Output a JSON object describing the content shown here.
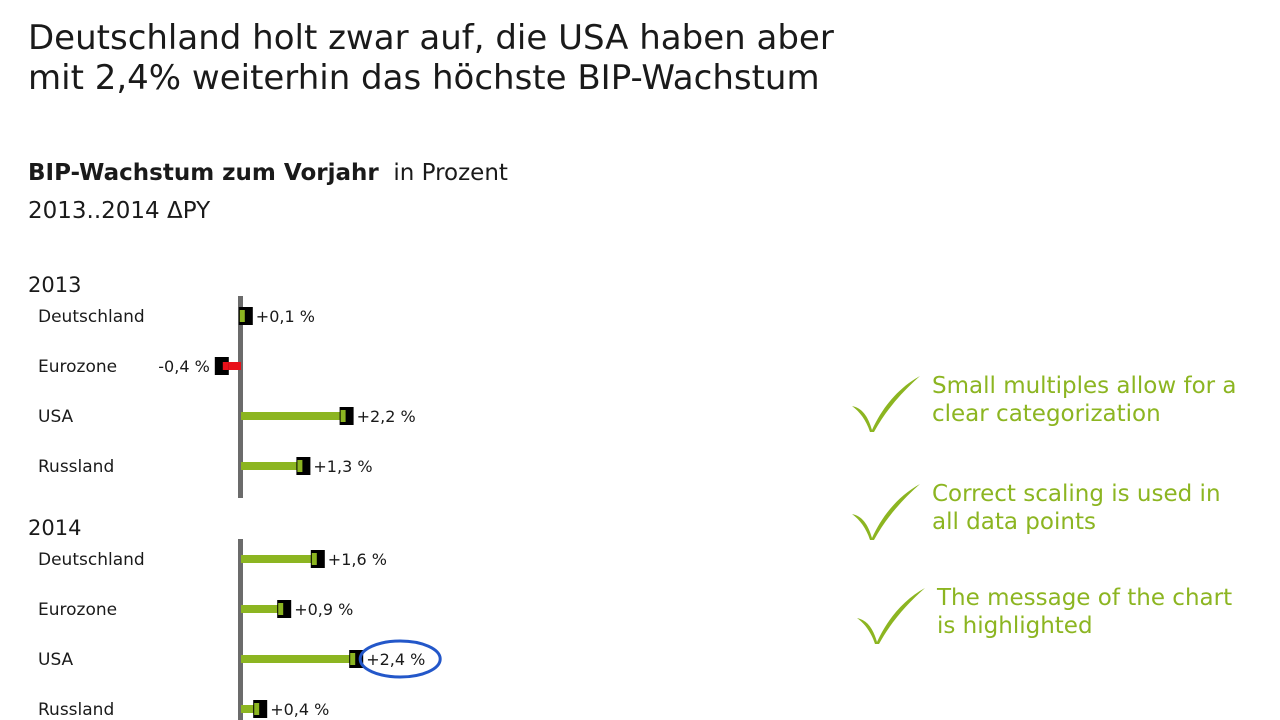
{
  "headline": {
    "line1": "Deutschland holt zwar auf, die USA haben aber",
    "line2": "mit 2,4% weiterhin das höchste BIP-Wachstum"
  },
  "subtitle": {
    "bold": "BIP-Wachstum zum Vorjahr",
    "unit": "in Prozent"
  },
  "period": "2013..2014 ΔPY",
  "chart_data": [
    {
      "type": "bar",
      "title": "2013",
      "categories": [
        "Deutschland",
        "Eurozone",
        "USA",
        "Russland"
      ],
      "values": [
        0.1,
        -0.4,
        2.2,
        1.3
      ],
      "labels": [
        "+0,1 %",
        "-0,4 %",
        "+2,2 %",
        "+1,3 %"
      ],
      "highlight": null
    },
    {
      "type": "bar",
      "title": "2014",
      "categories": [
        "Deutschland",
        "Eurozone",
        "USA",
        "Russland"
      ],
      "values": [
        1.6,
        0.9,
        2.4,
        0.4
      ],
      "labels": [
        "+1,6 %",
        "+0,9 %",
        "+2,4 %",
        "+0,4 %"
      ],
      "highlight": 2
    }
  ],
  "colors": {
    "positive": "#8cb521",
    "negative": "#e8101a",
    "marker": "#000000",
    "axis": "#6b6b6b",
    "highlight_ring": "#2357c9",
    "check": "#8cb521"
  },
  "notes": [
    {
      "icon": "checkmark-icon",
      "line1": "Small multiples allow for a",
      "line2": "clear categorization"
    },
    {
      "icon": "checkmark-icon",
      "line1": "Correct scaling is used in",
      "line2": "all data points"
    },
    {
      "icon": "checkmark-icon",
      "line1": "The message of the chart",
      "line2": "is highlighted"
    }
  ]
}
